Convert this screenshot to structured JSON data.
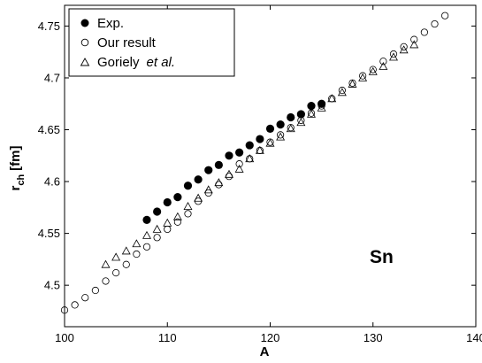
{
  "chart_data": {
    "type": "scatter",
    "xlabel": "A",
    "ylabel": "r",
    "ylabel_sub": "ch",
    "ylabel_unit": "[fm]",
    "xlim": [
      100,
      140
    ],
    "ylim": [
      4.46,
      4.77
    ],
    "xticks": [
      100,
      110,
      120,
      130,
      140
    ],
    "yticks": [
      4.5,
      4.55,
      4.6,
      4.65,
      4.7,
      4.75
    ],
    "grid": false,
    "legend_position": "top-left",
    "annotation": "Sn",
    "series": [
      {
        "name": "Exp.",
        "marker": "filled-circle",
        "points": [
          [
            108,
            4.563
          ],
          [
            109,
            4.571
          ],
          [
            110,
            4.58
          ],
          [
            111,
            4.585
          ],
          [
            112,
            4.596
          ],
          [
            113,
            4.602
          ],
          [
            114,
            4.611
          ],
          [
            115,
            4.616
          ],
          [
            116,
            4.625
          ],
          [
            117,
            4.628
          ],
          [
            118,
            4.635
          ],
          [
            119,
            4.641
          ],
          [
            120,
            4.651
          ],
          [
            121,
            4.655
          ],
          [
            122,
            4.662
          ],
          [
            123,
            4.665
          ],
          [
            124,
            4.673
          ],
          [
            125,
            4.675
          ]
        ]
      },
      {
        "name": "Our result",
        "marker": "open-circle",
        "points": [
          [
            100,
            4.476
          ],
          [
            101,
            4.481
          ],
          [
            102,
            4.488
          ],
          [
            103,
            4.495
          ],
          [
            104,
            4.504
          ],
          [
            105,
            4.512
          ],
          [
            106,
            4.52
          ],
          [
            107,
            4.53
          ],
          [
            108,
            4.537
          ],
          [
            109,
            4.546
          ],
          [
            110,
            4.554
          ],
          [
            111,
            4.561
          ],
          [
            112,
            4.569
          ],
          [
            113,
            4.581
          ],
          [
            114,
            4.589
          ],
          [
            115,
            4.597
          ],
          [
            116,
            4.605
          ],
          [
            117,
            4.617
          ],
          [
            118,
            4.622
          ],
          [
            119,
            4.63
          ],
          [
            120,
            4.638
          ],
          [
            121,
            4.645
          ],
          [
            122,
            4.652
          ],
          [
            123,
            4.659
          ],
          [
            124,
            4.666
          ],
          [
            125,
            4.673
          ],
          [
            126,
            4.68
          ],
          [
            127,
            4.688
          ],
          [
            128,
            4.695
          ],
          [
            129,
            4.702
          ],
          [
            130,
            4.708
          ],
          [
            131,
            4.716
          ],
          [
            132,
            4.723
          ],
          [
            133,
            4.73
          ],
          [
            134,
            4.737
          ],
          [
            135,
            4.744
          ],
          [
            136,
            4.752
          ],
          [
            137,
            4.76
          ]
        ]
      },
      {
        "name": "Goriely et al.",
        "name_parts": [
          "Goriely",
          "et al."
        ],
        "marker": "open-triangle",
        "points": [
          [
            104,
            4.52
          ],
          [
            105,
            4.527
          ],
          [
            106,
            4.533
          ],
          [
            107,
            4.54
          ],
          [
            108,
            4.548
          ],
          [
            109,
            4.554
          ],
          [
            110,
            4.56
          ],
          [
            111,
            4.566
          ],
          [
            112,
            4.576
          ],
          [
            113,
            4.584
          ],
          [
            114,
            4.592
          ],
          [
            115,
            4.599
          ],
          [
            116,
            4.607
          ],
          [
            117,
            4.612
          ],
          [
            118,
            4.622
          ],
          [
            119,
            4.63
          ],
          [
            120,
            4.637
          ],
          [
            121,
            4.643
          ],
          [
            122,
            4.651
          ],
          [
            123,
            4.657
          ],
          [
            124,
            4.665
          ],
          [
            125,
            4.671
          ],
          [
            126,
            4.68
          ],
          [
            127,
            4.686
          ],
          [
            128,
            4.694
          ],
          [
            129,
            4.7
          ],
          [
            130,
            4.706
          ],
          [
            131,
            4.711
          ],
          [
            132,
            4.72
          ],
          [
            133,
            4.727
          ],
          [
            134,
            4.732
          ]
        ]
      }
    ]
  }
}
